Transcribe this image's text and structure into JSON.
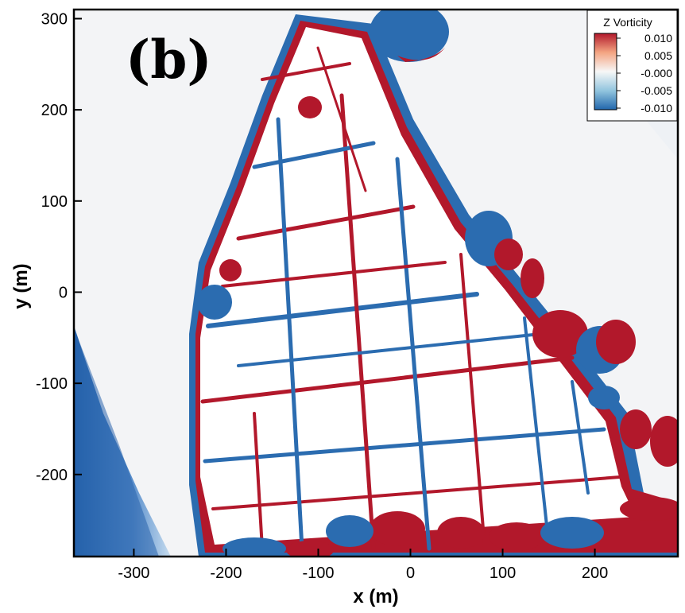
{
  "chart_data": {
    "type": "heatmap",
    "panel_label": "(b)",
    "xlabel": "x (m)",
    "ylabel": "y (m)",
    "xlim": [
      -365,
      290
    ],
    "ylim": [
      -290,
      310
    ],
    "x_ticks": [
      -300,
      -200,
      -100,
      0,
      100,
      200
    ],
    "y_ticks": [
      -200,
      -100,
      0,
      100,
      200,
      300
    ],
    "colorbar": {
      "title": "Z Vorticity",
      "levels": [
        "0.010",
        "0.005",
        "-0.000",
        "-0.005",
        "-0.010"
      ],
      "colors": [
        "#b2182b",
        "#f4a582",
        "#f7f7f7",
        "#92c5de",
        "#2166ac"
      ]
    },
    "colors": {
      "positive": "#b2182b",
      "negative": "#2b6cb0",
      "buildings": "#ffffff",
      "background": "#f3f4f6"
    }
  }
}
